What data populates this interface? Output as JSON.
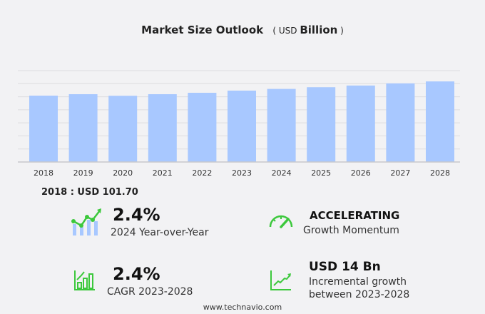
{
  "title": "Market Size Outlook",
  "unit_prefix": "USD",
  "unit": "Billion",
  "base_label": "2018 : USD  101.70",
  "kpis": {
    "yoy": {
      "value": "2.4%",
      "label": "2024 Year-over-Year",
      "icon": "bar-line-growth-icon"
    },
    "momentum": {
      "value": "ACCELERATING",
      "label": "Growth Momentum",
      "icon": "speedometer-icon"
    },
    "cagr": {
      "value": "2.4%",
      "label": "CAGR 2023-2028",
      "icon": "bar-chart-arrow-icon"
    },
    "incremental": {
      "value": "USD 14 Bn",
      "label1": "Incremental growth",
      "label2": "between 2023-2028",
      "icon": "trend-line-icon"
    }
  },
  "accent_color": "#3cc83c",
  "bar_color": "#a8c8ff",
  "footer": "www.technavio.com",
  "chart_data": {
    "type": "bar",
    "title": "Market Size Outlook",
    "categories": [
      "2018",
      "2019",
      "2020",
      "2021",
      "2022",
      "2023",
      "2024",
      "2025",
      "2026",
      "2027",
      "2028"
    ],
    "values": [
      101.7,
      103.9,
      101.5,
      103.9,
      106.1,
      109.4,
      112.0,
      114.6,
      117.2,
      120.5,
      123.5
    ],
    "ylim": [
      0,
      140
    ],
    "grid": true,
    "y_tick_labels_shown": false
  }
}
